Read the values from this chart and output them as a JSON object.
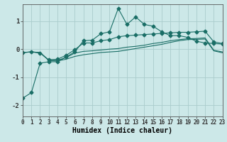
{
  "xlabel": "Humidex (Indice chaleur)",
  "background_color": "#cce8e8",
  "grid_color": "#aacccc",
  "line_color": "#1a6e66",
  "x_values": [
    0,
    1,
    2,
    3,
    4,
    5,
    6,
    7,
    8,
    9,
    10,
    11,
    12,
    13,
    14,
    15,
    16,
    17,
    18,
    19,
    20,
    21,
    22,
    23
  ],
  "line1": [
    -1.75,
    -1.55,
    -0.5,
    -0.45,
    -0.45,
    -0.28,
    -0.1,
    0.3,
    0.32,
    0.55,
    0.62,
    1.45,
    0.88,
    1.15,
    0.88,
    0.82,
    0.62,
    0.48,
    0.48,
    0.42,
    0.28,
    0.22,
    0.2,
    0.18
  ],
  "line2": [
    -0.12,
    -0.1,
    -0.14,
    -0.38,
    -0.36,
    -0.22,
    -0.02,
    0.22,
    0.22,
    0.3,
    0.34,
    0.44,
    0.48,
    0.5,
    0.52,
    0.54,
    0.56,
    0.58,
    0.6,
    0.6,
    0.62,
    0.64,
    0.26,
    0.2
  ],
  "line3": [
    -0.12,
    -0.1,
    -0.12,
    -0.4,
    -0.4,
    -0.3,
    -0.14,
    -0.08,
    -0.06,
    -0.03,
    0.0,
    0.02,
    0.07,
    0.1,
    0.14,
    0.2,
    0.24,
    0.3,
    0.34,
    0.37,
    0.38,
    0.4,
    -0.04,
    -0.1
  ],
  "line4": [
    -0.12,
    -0.1,
    -0.12,
    -0.4,
    -0.42,
    -0.36,
    -0.26,
    -0.2,
    -0.16,
    -0.12,
    -0.1,
    -0.08,
    -0.03,
    0.02,
    0.07,
    0.12,
    0.17,
    0.24,
    0.3,
    0.34,
    0.35,
    0.36,
    -0.06,
    -0.13
  ],
  "xlim": [
    0,
    23
  ],
  "ylim": [
    -2.4,
    1.6
  ],
  "yticks": [
    -2,
    -1,
    0,
    1
  ],
  "xticks": [
    0,
    1,
    2,
    3,
    4,
    5,
    6,
    7,
    8,
    9,
    10,
    11,
    12,
    13,
    14,
    15,
    16,
    17,
    18,
    19,
    20,
    21,
    22,
    23
  ]
}
